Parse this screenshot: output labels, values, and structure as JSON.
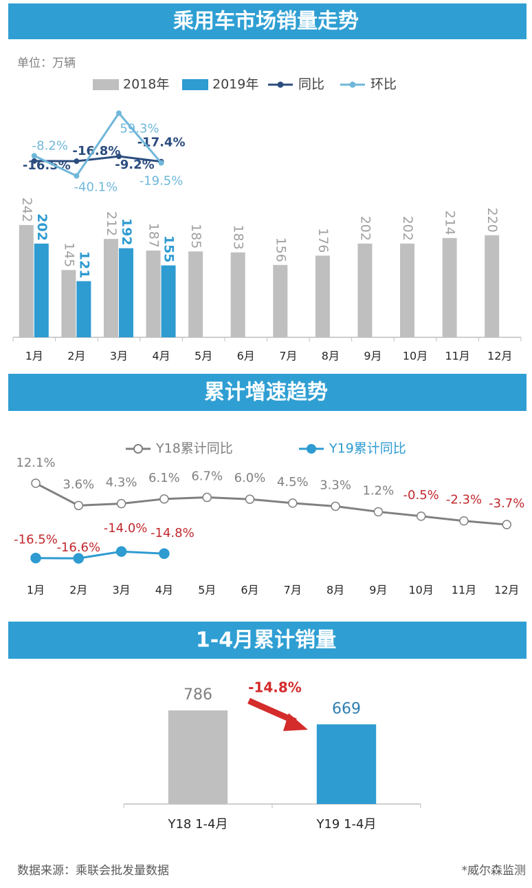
{
  "chart_data": [
    {
      "type": "bar",
      "title": "乘用车市场销量走势",
      "unit": "单位：万辆",
      "categories": [
        "1月",
        "2月",
        "3月",
        "4月",
        "5月",
        "6月",
        "7月",
        "8月",
        "9月",
        "10月",
        "11月",
        "12月"
      ],
      "ylim": [
        0,
        250
      ],
      "y2lim": [
        -45,
        75
      ],
      "series": [
        {
          "name": "2018年",
          "color": "#bfbfbf",
          "label_color": "#a0a0a0",
          "values": [
            242,
            145,
            212,
            187,
            185,
            183,
            156,
            176,
            202,
            202,
            214,
            220
          ]
        },
        {
          "name": "2019年",
          "color": "#2e9bd1",
          "label_color": "#2e9bd1",
          "values": [
            202,
            121,
            192,
            155,
            null,
            null,
            null,
            null,
            null,
            null,
            null,
            null
          ]
        },
        {
          "name": "同比",
          "type": "line",
          "axis": "y2",
          "color": "#2b4c7e",
          "values": [
            -16.5,
            -16.8,
            -9.2,
            -17.4,
            null,
            null,
            null,
            null,
            null,
            null,
            null,
            null
          ],
          "value_labels": [
            "-16.5%",
            "-16.8%",
            "-9.2%",
            "-17.4%",
            null,
            null,
            null,
            null,
            null,
            null,
            null,
            null
          ]
        },
        {
          "name": "环比",
          "type": "line",
          "axis": "y2",
          "color": "#6fb7da",
          "values": [
            -8.2,
            -40.1,
            59.3,
            -19.5,
            null,
            null,
            null,
            null,
            null,
            null,
            null,
            null
          ],
          "value_labels": [
            "-8.2%",
            "-40.1%",
            "59.3%",
            "-19.5%",
            null,
            null,
            null,
            null,
            null,
            null,
            null,
            null
          ]
        }
      ]
    },
    {
      "type": "line",
      "title": "累计增速趋势",
      "categories": [
        "1月",
        "2月",
        "3月",
        "4月",
        "5月",
        "6月",
        "7月",
        "8月",
        "9月",
        "10月",
        "11月",
        "12月"
      ],
      "ylim": [
        -20,
        15
      ],
      "negative_label_color": "#c0282d",
      "series": [
        {
          "name": "Y18累计同比",
          "color": "#808080",
          "values": [
            12.1,
            3.6,
            4.3,
            6.1,
            6.7,
            6.0,
            4.5,
            3.3,
            1.2,
            -0.5,
            -2.3,
            -3.7
          ],
          "value_labels": [
            "12.1%",
            "3.6%",
            "4.3%",
            "6.1%",
            "6.7%",
            "6.0%",
            "4.5%",
            "3.3%",
            "1.2%",
            "-0.5%",
            "-2.3%",
            "-3.7%"
          ]
        },
        {
          "name": "Y19累计同比",
          "color": "#2e9bd1",
          "values": [
            -16.5,
            -16.6,
            -14.0,
            -14.8,
            null,
            null,
            null,
            null,
            null,
            null,
            null,
            null
          ],
          "value_labels": [
            "-16.5%",
            "-16.6%",
            "-14.0%",
            "-14.8%",
            null,
            null,
            null,
            null,
            null,
            null,
            null,
            null
          ]
        }
      ]
    },
    {
      "type": "bar",
      "title": "1-4月累计销量",
      "categories": [
        "Y18 1-4月",
        "Y19 1-4月"
      ],
      "values": [
        786,
        669
      ],
      "colors": [
        "#bfbfbf",
        "#2e9bd1"
      ],
      "label_colors": [
        "#7f7f7f",
        "#2e7fb0"
      ],
      "ylim": [
        0,
        800
      ],
      "annotation": "-14.8%",
      "annotation_color": "#d42b2b"
    }
  ],
  "source": "数据来源：乘联会批发量数据",
  "credit": "*威尔森监测"
}
